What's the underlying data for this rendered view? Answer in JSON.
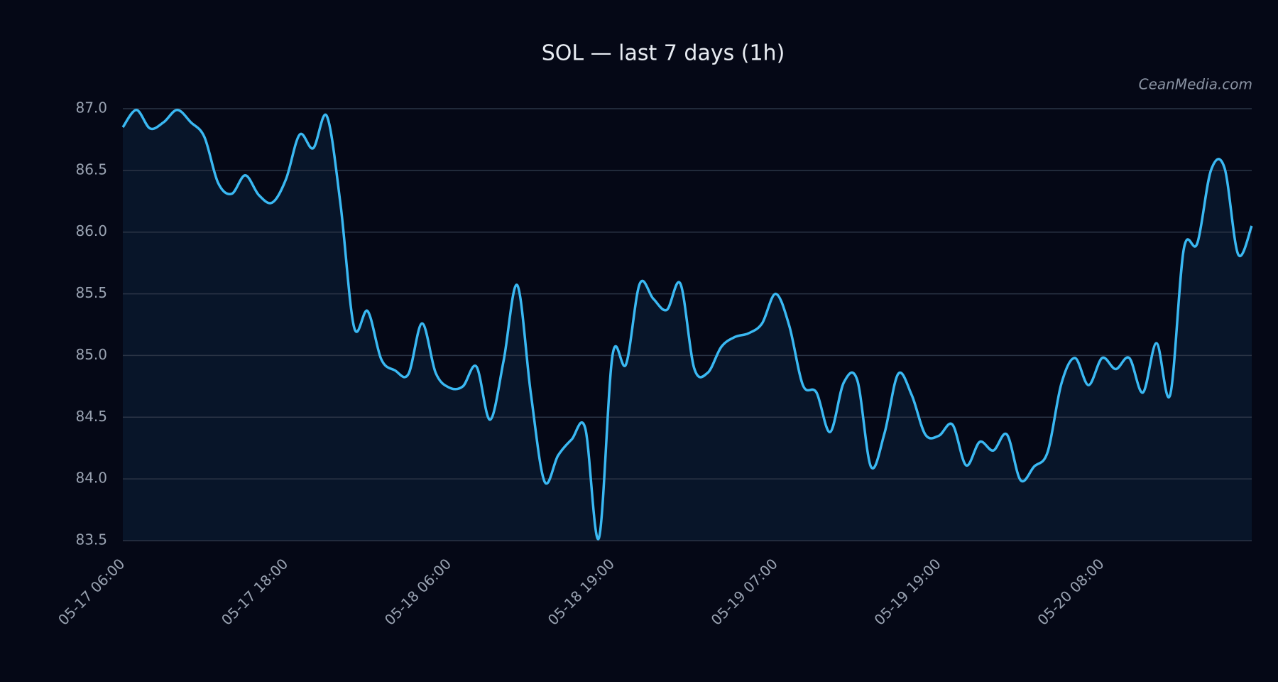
{
  "chart_data": {
    "type": "line",
    "title": "SOL — last 7 days (1h)",
    "watermark": "CeanMedia.com",
    "categories": [
      "05-17 06:00",
      null,
      null,
      null,
      null,
      null,
      null,
      null,
      null,
      null,
      null,
      null,
      "05-17 18:00",
      null,
      null,
      null,
      null,
      null,
      null,
      null,
      null,
      null,
      null,
      null,
      "05-18 06:00",
      null,
      null,
      null,
      null,
      null,
      null,
      null,
      null,
      null,
      null,
      null,
      "05-18 19:00",
      null,
      null,
      null,
      null,
      null,
      null,
      null,
      null,
      null,
      null,
      null,
      "05-19 07:00",
      null,
      null,
      null,
      null,
      null,
      null,
      null,
      null,
      null,
      null,
      null,
      "05-19 19:00",
      null,
      null,
      null,
      null,
      null,
      null,
      null,
      null,
      null,
      null,
      null,
      "05-20 08:00",
      null,
      null,
      null,
      null,
      null,
      null,
      null,
      null,
      null,
      null,
      null
    ],
    "series": [
      {
        "name": "SOL",
        "color": "#3ab8f2",
        "values": [
          86.85,
          86.99,
          86.84,
          86.89,
          86.99,
          86.89,
          86.77,
          86.4,
          86.31,
          86.46,
          86.3,
          86.24,
          86.43,
          86.79,
          86.68,
          86.94,
          86.23,
          85.23,
          85.36,
          84.97,
          84.88,
          84.85,
          85.26,
          84.86,
          84.74,
          84.75,
          84.91,
          84.48,
          84.96,
          85.57,
          84.69,
          83.98,
          84.19,
          84.32,
          84.41,
          83.52,
          85.0,
          84.93,
          85.58,
          85.46,
          85.37,
          85.58,
          84.9,
          84.86,
          85.07,
          85.15,
          85.18,
          85.26,
          85.5,
          85.24,
          84.76,
          84.7,
          84.38,
          84.78,
          84.8,
          84.1,
          84.37,
          84.85,
          84.68,
          84.36,
          84.35,
          84.44,
          84.11,
          84.3,
          84.23,
          84.36,
          83.99,
          84.1,
          84.22,
          84.77,
          84.98,
          84.76,
          84.98,
          84.89,
          84.98,
          84.7,
          85.1,
          84.68,
          85.86,
          85.91,
          86.5,
          86.52,
          85.82,
          86.05
        ]
      }
    ],
    "ylim": [
      83.5,
      87.0
    ],
    "yticks": [
      83.5,
      {
        "value": 84,
        "label": "84.0"
      },
      84.5,
      {
        "value": 85,
        "label": "85.0"
      },
      85.5,
      {
        "value": 86,
        "label": "86.0"
      },
      86.5,
      {
        "value": 87,
        "label": "87.0"
      }
    ],
    "grid": true
  }
}
